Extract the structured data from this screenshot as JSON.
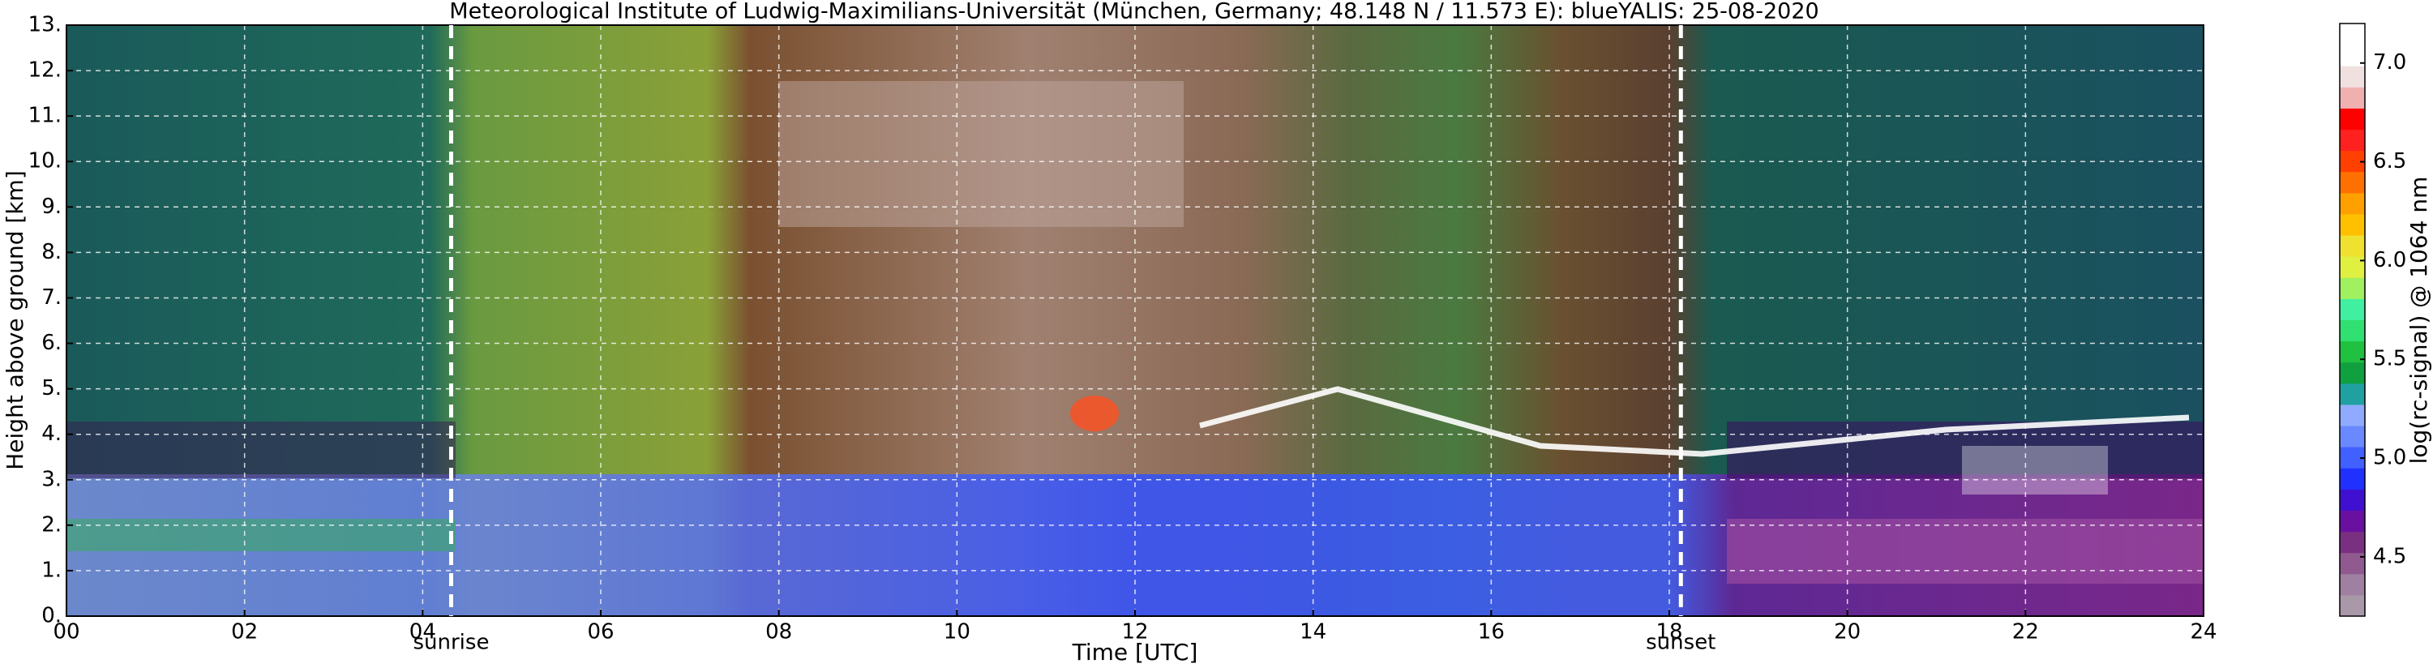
{
  "chart_data": {
    "type": "heatmap",
    "title": "Meteorological Institute of Ludwig-Maximilians-Universität (München, Germany; 48.148 N / 11.573 E):     blueYALIS: 25-08-2020",
    "x_label": "Time [UTC]",
    "y_label": "Height above ground [km]",
    "xlim": [
      0,
      24
    ],
    "xticks": [
      {
        "value": 0,
        "label": "00"
      },
      {
        "value": 2,
        "label": "02"
      },
      {
        "value": 4,
        "label": "04"
      },
      {
        "value": 6,
        "label": "06"
      },
      {
        "value": 8,
        "label": "08"
      },
      {
        "value": 10,
        "label": "10"
      },
      {
        "value": 12,
        "label": "12"
      },
      {
        "value": 14,
        "label": "14"
      },
      {
        "value": 16,
        "label": "16"
      },
      {
        "value": 18,
        "label": "18"
      },
      {
        "value": 20,
        "label": "20"
      },
      {
        "value": 22,
        "label": "22"
      },
      {
        "value": 24,
        "label": "24"
      }
    ],
    "ylim": [
      0,
      13
    ],
    "yticks": [
      {
        "value": 0,
        "label": "0."
      },
      {
        "value": 1,
        "label": "1."
      },
      {
        "value": 2,
        "label": "2."
      },
      {
        "value": 3,
        "label": "3."
      },
      {
        "value": 4,
        "label": "4."
      },
      {
        "value": 5,
        "label": "5."
      },
      {
        "value": 6,
        "label": "6."
      },
      {
        "value": 7,
        "label": "7."
      },
      {
        "value": 8,
        "label": "8."
      },
      {
        "value": 9,
        "label": "9."
      },
      {
        "value": 10,
        "label": "10."
      },
      {
        "value": 11,
        "label": "11."
      },
      {
        "value": 12,
        "label": "12."
      },
      {
        "value": 13,
        "label": "13."
      }
    ],
    "grid": true,
    "annotations": [
      {
        "text": "sunrise",
        "x": 4.32
      },
      {
        "text": "sunset",
        "x": 18.13
      }
    ],
    "colorbar": {
      "label": "log(rc-signal) @ 1064 nm",
      "lim": [
        4.2,
        7.2
      ],
      "ticks": [
        4.5,
        {
          "value": 5.0,
          "label": "5.0"
        },
        5.5,
        {
          "value": 6.0,
          "label": "6.0"
        },
        6.5,
        {
          "value": 7.0,
          "label": "7.0"
        }
      ],
      "colors": [
        "#a898a8",
        "#a080a0",
        "#905a90",
        "#7a3080",
        "#6a10a0",
        "#4010d0",
        "#2030ff",
        "#4060ff",
        "#6a88ff",
        "#90aaff",
        "#20a0a0",
        "#10a040",
        "#20c040",
        "#30e070",
        "#40f0a0",
        "#a0f060",
        "#e0f040",
        "#f0e030",
        "#ffc000",
        "#ffa000",
        "#ff7000",
        "#ff4000",
        "#ff2020",
        "#ff0000",
        "#f0b0b0",
        "#f0e0e0",
        "#ffffff",
        "#ffffff"
      ]
    }
  }
}
